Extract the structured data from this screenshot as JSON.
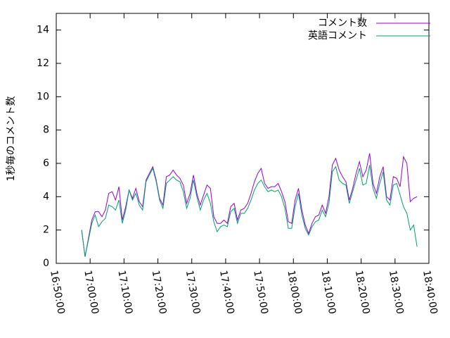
{
  "chart_data": {
    "type": "line",
    "ylabel": "1秒毎のコメント数",
    "xlim": [
      "16:50:00",
      "18:40:00"
    ],
    "xticks": [
      "16:50:00",
      "17:00:00",
      "17:10:00",
      "17:20:00",
      "17:30:00",
      "17:40:00",
      "17:50:00",
      "18:00:00",
      "18:10:00",
      "18:20:00",
      "18:30:00",
      "18:40:00"
    ],
    "ylim": [
      0,
      15
    ],
    "yticks": [
      0,
      2,
      4,
      6,
      8,
      10,
      12,
      14
    ],
    "legend": "upper right",
    "x": [
      "16:57:30",
      "16:58:30",
      "16:59:30",
      "17:00:30",
      "17:01:30",
      "17:02:30",
      "17:03:30",
      "17:04:30",
      "17:05:30",
      "17:06:30",
      "17:07:30",
      "17:08:30",
      "17:09:30",
      "17:10:30",
      "17:11:30",
      "17:12:30",
      "17:13:30",
      "17:14:30",
      "17:15:30",
      "17:16:30",
      "17:17:30",
      "17:18:30",
      "17:19:30",
      "17:20:30",
      "17:21:30",
      "17:22:30",
      "17:23:30",
      "17:24:30",
      "17:25:30",
      "17:26:30",
      "17:27:30",
      "17:28:30",
      "17:29:30",
      "17:30:30",
      "17:31:30",
      "17:32:30",
      "17:33:30",
      "17:34:30",
      "17:35:30",
      "17:36:30",
      "17:37:30",
      "17:38:30",
      "17:39:30",
      "17:40:30",
      "17:41:30",
      "17:42:30",
      "17:43:30",
      "17:44:30",
      "17:45:30",
      "17:46:30",
      "17:47:30",
      "17:48:30",
      "17:49:30",
      "17:50:30",
      "17:51:30",
      "17:52:30",
      "17:53:30",
      "17:54:30",
      "17:55:30",
      "17:56:30",
      "17:57:30",
      "17:58:30",
      "17:59:30",
      "18:00:30",
      "18:01:30",
      "18:02:30",
      "18:03:30",
      "18:04:30",
      "18:05:30",
      "18:06:30",
      "18:07:30",
      "18:08:30",
      "18:09:30",
      "18:10:30",
      "18:11:30",
      "18:12:30",
      "18:13:30",
      "18:14:30",
      "18:15:30",
      "18:16:30",
      "18:17:30",
      "18:18:30",
      "18:19:30",
      "18:20:30",
      "18:21:30",
      "18:22:30",
      "18:23:30",
      "18:24:30",
      "18:25:30",
      "18:26:30",
      "18:27:30",
      "18:28:30",
      "18:29:30",
      "18:30:30",
      "18:31:30",
      "18:32:30",
      "18:33:30",
      "18:34:30",
      "18:35:30",
      "18:36:30"
    ],
    "series": [
      {
        "name": "コメント数",
        "color": "#9400d3",
        "values": [
          2.0,
          0.4,
          1.5,
          2.6,
          3.1,
          3.1,
          2.8,
          3.2,
          4.2,
          4.3,
          3.8,
          4.6,
          2.6,
          3.4,
          4.4,
          3.9,
          4.5,
          3.7,
          3.4,
          5.0,
          5.4,
          5.8,
          5.0,
          3.9,
          3.5,
          5.2,
          5.3,
          5.6,
          5.3,
          5.1,
          4.7,
          3.6,
          4.2,
          5.3,
          4.2,
          3.5,
          4.1,
          4.7,
          4.5,
          2.8,
          2.4,
          2.4,
          2.6,
          2.4,
          3.4,
          3.6,
          2.6,
          3.2,
          3.3,
          3.6,
          4.2,
          4.9,
          5.4,
          5.7,
          4.8,
          4.5,
          4.6,
          4.6,
          4.8,
          4.3,
          3.7,
          2.5,
          2.4,
          3.8,
          4.5,
          3.2,
          2.3,
          1.8,
          2.4,
          2.8,
          2.9,
          3.5,
          3.0,
          4.0,
          5.9,
          6.3,
          5.6,
          5.2,
          4.9,
          3.8,
          4.5,
          5.4,
          6.1,
          5.2,
          5.6,
          6.6,
          4.8,
          4.2,
          5.2,
          5.8,
          4.0,
          3.8,
          5.2,
          5.1,
          4.6,
          6.4,
          6.0,
          3.7,
          3.9,
          4.0
        ]
      },
      {
        "name": "英語コメント",
        "color": "#009e73",
        "values": [
          2.0,
          0.4,
          1.4,
          2.4,
          2.9,
          2.2,
          2.5,
          2.7,
          3.5,
          3.4,
          3.2,
          3.8,
          2.4,
          3.2,
          4.4,
          3.8,
          4.2,
          3.5,
          3.2,
          4.9,
          5.3,
          5.7,
          4.9,
          3.8,
          3.3,
          4.8,
          5.0,
          5.2,
          5.0,
          4.9,
          4.3,
          3.3,
          3.9,
          5.0,
          4.0,
          3.2,
          3.8,
          4.2,
          3.6,
          2.5,
          1.9,
          2.2,
          2.3,
          2.2,
          3.1,
          3.3,
          2.4,
          3.0,
          3.0,
          3.3,
          3.8,
          4.4,
          4.8,
          5.0,
          4.6,
          4.3,
          4.4,
          4.3,
          4.4,
          4.0,
          3.3,
          2.1,
          2.1,
          3.4,
          4.2,
          2.9,
          2.1,
          1.7,
          2.2,
          2.5,
          2.6,
          3.2,
          2.8,
          3.6,
          5.5,
          5.8,
          5.0,
          4.8,
          4.7,
          3.6,
          4.3,
          5.0,
          5.7,
          4.7,
          4.8,
          5.9,
          4.5,
          3.9,
          4.8,
          5.5,
          3.8,
          3.5,
          4.7,
          4.8,
          4.1,
          3.4,
          3.0,
          2.0,
          2.3,
          1.0
        ]
      }
    ]
  }
}
